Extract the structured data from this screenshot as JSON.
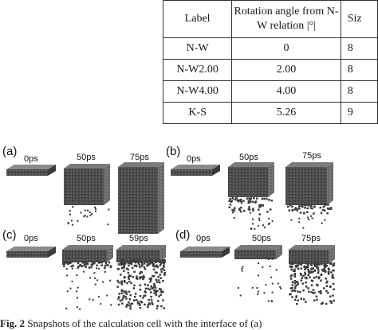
{
  "table": {
    "headers": [
      "Label",
      "Rotation angle from N-W relation |°|",
      "Siz"
    ],
    "rows": [
      [
        "N-W",
        "0",
        "8"
      ],
      [
        "N-W2.00",
        "2.00",
        "8"
      ],
      [
        "N-W4.00",
        "4.00",
        "8"
      ],
      [
        "K-S",
        "5.26",
        "9"
      ]
    ]
  },
  "figure": {
    "panels": [
      {
        "label": "(a)",
        "times": [
          "0ps",
          "50ps",
          "75ps"
        ]
      },
      {
        "label": "(b)",
        "times": [
          "0ps",
          "50ps",
          "75ps"
        ]
      },
      {
        "label": "(c)",
        "times": [
          "0ps",
          "50ps",
          "59ps"
        ]
      },
      {
        "label": "(d)",
        "times": [
          "0ps",
          "50ps",
          "75ps"
        ]
      }
    ],
    "caption_prefix": "Fig. 2",
    "caption_text": "Snapshots of the calculation cell with the interface of (a)"
  }
}
